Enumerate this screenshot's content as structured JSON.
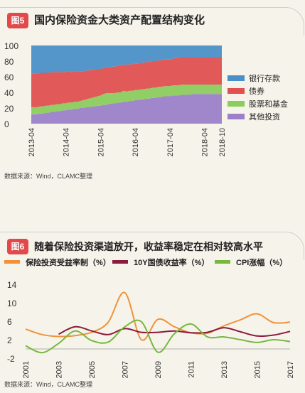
{
  "figure1": {
    "badge": "图5",
    "title": "国内保险资金大类资产配置结构变化",
    "source": "数据来源：Wind，CLAMC整理",
    "chart_data": {
      "type": "area",
      "stacked": true,
      "x": [
        "2013-04",
        "2013-05",
        "2013-06",
        "2013-07",
        "2013-08",
        "2013-09",
        "2013-10",
        "2013-11",
        "2013-12",
        "2014-01",
        "2014-02",
        "2014-03",
        "2014-04",
        "2014-05",
        "2014-06",
        "2014-07",
        "2014-08",
        "2014-09",
        "2014-10",
        "2014-11",
        "2014-12",
        "2015-01",
        "2015-02",
        "2015-03",
        "2015-04",
        "2015-05",
        "2015-06",
        "2015-07",
        "2015-08",
        "2015-09",
        "2015-10",
        "2015-11",
        "2015-12",
        "2016-01",
        "2016-02",
        "2016-03",
        "2016-04",
        "2016-05",
        "2016-06",
        "2016-07",
        "2016-08",
        "2016-09",
        "2016-10",
        "2016-11",
        "2016-12",
        "2017-01",
        "2017-02",
        "2017-03",
        "2017-04",
        "2017-05",
        "2017-06",
        "2017-07",
        "2017-08",
        "2017-09",
        "2017-10",
        "2017-11",
        "2017-12",
        "2018-01",
        "2018-02",
        "2018-03",
        "2018-04",
        "2018-05",
        "2018-06",
        "2018-07",
        "2018-08",
        "2018-09",
        "2018-10"
      ],
      "x_tick_labels": [
        "2013-04",
        "2014-04",
        "2015-04",
        "2016-04",
        "2017-04",
        "2018-04",
        "2018-10"
      ],
      "series": [
        {
          "name": "其他投资",
          "color": "#9b7fc8",
          "values": [
            12,
            12,
            12,
            13,
            13,
            14,
            14,
            15,
            15,
            16,
            16,
            17,
            17,
            18,
            18,
            19,
            19,
            20,
            20,
            21,
            21,
            22,
            22,
            23,
            23,
            24,
            24,
            25,
            26,
            26,
            27,
            27,
            28,
            28,
            29,
            29,
            30,
            30,
            31,
            31,
            32,
            32,
            33,
            33,
            34,
            34,
            35,
            35,
            35,
            36,
            36,
            36,
            37,
            37,
            37,
            37,
            38,
            38,
            38,
            38,
            38,
            38,
            38,
            38,
            38,
            38,
            38
          ]
        },
        {
          "name": "股票和基金",
          "color": "#8ccc5e",
          "values": [
            9,
            9,
            9,
            9,
            9,
            9,
            9,
            9,
            9,
            9,
            9,
            9,
            9,
            9,
            9,
            9,
            9,
            9,
            10,
            10,
            11,
            11,
            12,
            12,
            13,
            14,
            15,
            14,
            13,
            13,
            13,
            13,
            14,
            13,
            13,
            13,
            13,
            13,
            13,
            13,
            13,
            13,
            13,
            13,
            13,
            13,
            13,
            13,
            13,
            13,
            13,
            13,
            13,
            13,
            13,
            13,
            12,
            12,
            12,
            12,
            12,
            12,
            12,
            12,
            12,
            12,
            12
          ]
        },
        {
          "name": "债券",
          "color": "#e05050",
          "values": [
            43,
            43,
            43,
            43,
            43,
            42,
            42,
            42,
            42,
            41,
            41,
            40,
            40,
            40,
            39,
            39,
            38,
            38,
            37,
            37,
            36,
            36,
            35,
            35,
            34,
            33,
            33,
            33,
            34,
            34,
            34,
            34,
            34,
            34,
            34,
            34,
            34,
            34,
            34,
            34,
            34,
            34,
            34,
            34,
            34,
            34,
            34,
            34,
            34,
            34,
            35,
            35,
            35,
            35,
            35,
            35,
            35,
            35,
            35,
            35,
            35,
            35,
            35,
            35,
            35,
            35,
            35
          ]
        },
        {
          "name": "银行存款",
          "color": "#4a90c8",
          "values": [
            36,
            36,
            36,
            35,
            35,
            35,
            35,
            34,
            34,
            34,
            34,
            34,
            34,
            33,
            34,
            33,
            34,
            33,
            33,
            32,
            32,
            31,
            31,
            30,
            30,
            29,
            28,
            28,
            27,
            27,
            26,
            26,
            24,
            25,
            24,
            24,
            23,
            23,
            22,
            22,
            21,
            21,
            20,
            20,
            19,
            19,
            18,
            18,
            18,
            17,
            16,
            16,
            15,
            15,
            15,
            15,
            15,
            15,
            15,
            15,
            15,
            15,
            15,
            15,
            15,
            15,
            15
          ]
        }
      ],
      "ylim": [
        0,
        100
      ],
      "y_ticks": [
        0,
        20,
        40,
        60,
        80,
        100
      ],
      "legend_position": "right",
      "legend_order": [
        "银行存款",
        "债券",
        "股票和基金",
        "其他投资"
      ]
    }
  },
  "figure2": {
    "badge": "图6",
    "title": "随着保险投资渠道放开，收益率稳定在相对较高水平",
    "source": "数据来源：Wind，CLAMC整理",
    "chart_data": {
      "type": "line",
      "x": [
        2001,
        2002,
        2003,
        2004,
        2005,
        2006,
        2007,
        2008,
        2009,
        2010,
        2011,
        2012,
        2013,
        2014,
        2015,
        2016,
        2017
      ],
      "x_tick_labels": [
        "2001",
        "2003",
        "2005",
        "2007",
        "2009",
        "2011",
        "2013",
        "2015",
        "2017"
      ],
      "series": [
        {
          "name": "保险投资受益率制（%）",
          "color": "#f0923a",
          "values": [
            4.3,
            3.1,
            2.7,
            2.9,
            3.6,
            5.8,
            12.2,
            2.0,
            6.4,
            4.8,
            3.5,
            3.4,
            5.0,
            6.3,
            7.6,
            5.7,
            5.8
          ]
        },
        {
          "name": "10Y国债收益率（%）",
          "color": "#8b1a3c",
          "values": [
            null,
            null,
            3.2,
            4.8,
            3.9,
            3.1,
            4.4,
            3.6,
            3.6,
            3.9,
            3.5,
            3.6,
            4.6,
            3.7,
            2.8,
            3.0,
            3.8
          ]
        },
        {
          "name": "CPI涨幅（%）",
          "color": "#76b83f",
          "values": [
            0.7,
            -0.8,
            1.2,
            3.9,
            1.8,
            1.5,
            4.8,
            5.9,
            -0.7,
            3.3,
            5.4,
            2.6,
            2.6,
            2.0,
            1.4,
            2.0,
            1.6
          ]
        }
      ],
      "ylim": [
        -2,
        14
      ],
      "y_ticks": [
        -2,
        2,
        6,
        10,
        14
      ],
      "legend_position": "top"
    }
  }
}
